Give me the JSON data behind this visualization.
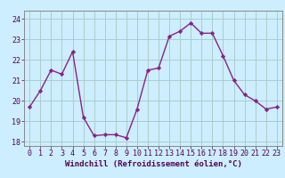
{
  "x": [
    0,
    1,
    2,
    3,
    4,
    5,
    6,
    7,
    8,
    9,
    10,
    11,
    12,
    13,
    14,
    15,
    16,
    17,
    18,
    19,
    20,
    21,
    22,
    23
  ],
  "y": [
    19.7,
    20.5,
    21.5,
    21.3,
    22.4,
    19.2,
    18.3,
    18.35,
    18.35,
    18.2,
    19.6,
    21.5,
    21.6,
    23.15,
    23.4,
    23.8,
    23.3,
    23.3,
    22.2,
    21.0,
    20.3,
    20.0,
    19.6,
    19.7
  ],
  "line_color": "#882288",
  "marker": "D",
  "marker_size": 2.2,
  "linewidth": 1.0,
  "bg_color": "#cceeff",
  "grid_color": "#aacccc",
  "xlabel": "Windchill (Refroidissement éolien,°C)",
  "xlabel_fontsize": 6.5,
  "ylim": [
    17.8,
    24.4
  ],
  "xlim": [
    -0.5,
    23.5
  ],
  "yticks": [
    18,
    19,
    20,
    21,
    22,
    23,
    24
  ],
  "xticks": [
    0,
    1,
    2,
    3,
    4,
    5,
    6,
    7,
    8,
    9,
    10,
    11,
    12,
    13,
    14,
    15,
    16,
    17,
    18,
    19,
    20,
    21,
    22,
    23
  ],
  "tick_fontsize": 6.0
}
